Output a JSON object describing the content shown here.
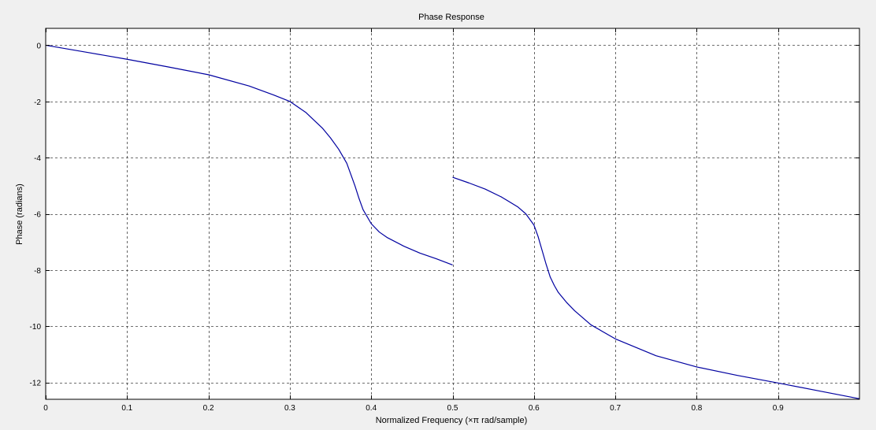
{
  "chart_data": {
    "type": "line",
    "title": "Phase Response",
    "xlabel": "Normalized Frequency (×π rad/sample)",
    "ylabel": "Phase (radians)",
    "xlim": [
      0,
      1
    ],
    "ylim": [
      -12.6,
      0.6
    ],
    "xticks": [
      0,
      0.1,
      0.2,
      0.3,
      0.4,
      0.5,
      0.6,
      0.7,
      0.8,
      0.9
    ],
    "xtick_labels": [
      "0",
      "0.1",
      "0.2",
      "0.3",
      "0.4",
      "0.5",
      "0.6",
      "0.7",
      "0.8",
      "0.9"
    ],
    "yticks": [
      0,
      -2,
      -4,
      -6,
      -8,
      -10,
      -12
    ],
    "ytick_labels": [
      "0",
      "-2",
      "-4",
      "-6",
      "-8",
      "-10",
      "-12"
    ],
    "grid": true,
    "colors": {
      "line": "#0000a0",
      "axes_bg": "#ffffff",
      "figure_bg": "#f0f0f0",
      "grid": "#404040"
    },
    "series": [
      {
        "segments": [
          {
            "x": [
              0,
              0.05,
              0.1,
              0.15,
              0.2,
              0.25,
              0.28,
              0.3,
              0.32,
              0.34,
              0.35,
              0.36,
              0.37,
              0.375,
              0.38,
              0.385,
              0.39,
              0.395,
              0.4,
              0.41,
              0.42,
              0.44,
              0.46,
              0.48,
              0.5
            ],
            "y": [
              0,
              -0.25,
              -0.5,
              -0.77,
              -1.05,
              -1.45,
              -1.77,
              -2.0,
              -2.4,
              -2.95,
              -3.3,
              -3.7,
              -4.2,
              -4.6,
              -5.0,
              -5.45,
              -5.85,
              -6.1,
              -6.35,
              -6.65,
              -6.85,
              -7.15,
              -7.4,
              -7.6,
              -7.82
            ]
          },
          {
            "x": [
              0.5,
              0.52,
              0.54,
              0.56,
              0.58,
              0.59,
              0.6,
              0.605,
              0.61,
              0.615,
              0.62,
              0.625,
              0.63,
              0.64,
              0.65,
              0.67,
              0.7,
              0.75,
              0.8,
              0.85,
              0.9,
              0.95,
              1.0
            ],
            "y": [
              -4.7,
              -4.9,
              -5.12,
              -5.4,
              -5.75,
              -6.0,
              -6.4,
              -6.8,
              -7.3,
              -7.8,
              -8.25,
              -8.55,
              -8.8,
              -9.15,
              -9.45,
              -9.95,
              -10.45,
              -11.05,
              -11.45,
              -11.75,
              -12.02,
              -12.3,
              -12.58
            ]
          }
        ]
      }
    ]
  }
}
